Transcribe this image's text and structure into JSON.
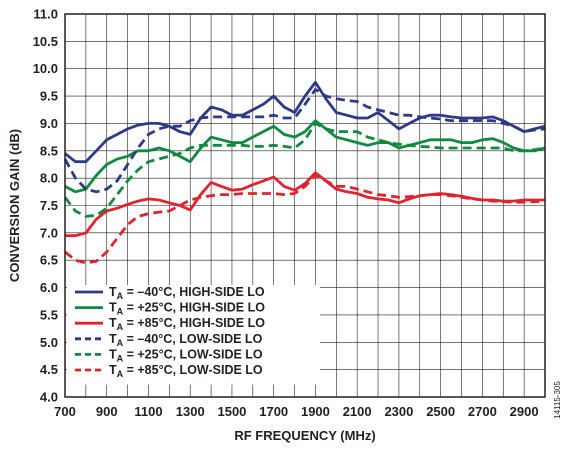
{
  "chart_data": {
    "type": "line",
    "xlabel": "RF FREQUENCY (MHz)",
    "ylabel": "CONVERSION GAIN (dB)",
    "xlim": [
      700,
      3000
    ],
    "ylim": [
      4.0,
      11.0
    ],
    "x_ticks": [
      "700",
      "900",
      "1100",
      "1300",
      "1500",
      "1700",
      "1900",
      "2100",
      "2300",
      "2500",
      "2700",
      "2900"
    ],
    "y_ticks": [
      "4.0",
      "4.5",
      "5.0",
      "5.5",
      "6.0",
      "6.5",
      "7.0",
      "7.5",
      "8.0",
      "8.5",
      "9.0",
      "9.5",
      "10.0",
      "10.5",
      "11.0"
    ],
    "x_tick_values": [
      700,
      900,
      1100,
      1300,
      1500,
      1700,
      1900,
      2100,
      2300,
      2500,
      2700,
      2900
    ],
    "y_tick_values": [
      4.0,
      4.5,
      5.0,
      5.5,
      6.0,
      6.5,
      7.0,
      7.5,
      8.0,
      8.5,
      9.0,
      9.5,
      10.0,
      10.5,
      11.0
    ],
    "grid": true,
    "legend_placement": "bottom-left",
    "figure_id": "14115-305",
    "colors": {
      "blue": "#2e3a87",
      "green": "#0f8a3f",
      "red": "#e1232f"
    },
    "series": [
      {
        "name": "= –40°C, HIGH-SIDE LO",
        "color": "blue",
        "style": "solid",
        "x": [
          700,
          750,
          800,
          850,
          900,
          950,
          1000,
          1050,
          1100,
          1150,
          1200,
          1250,
          1300,
          1350,
          1400,
          1450,
          1500,
          1550,
          1600,
          1650,
          1700,
          1750,
          1800,
          1850,
          1900,
          1950,
          2000,
          2050,
          2100,
          2150,
          2200,
          2250,
          2300,
          2350,
          2400,
          2450,
          2500,
          2550,
          2600,
          2650,
          2700,
          2750,
          2800,
          2850,
          2900,
          2950,
          3000
        ],
        "y": [
          8.45,
          8.3,
          8.3,
          8.5,
          8.7,
          8.8,
          8.9,
          8.97,
          9.0,
          9.0,
          8.95,
          8.85,
          8.8,
          9.1,
          9.3,
          9.25,
          9.15,
          9.15,
          9.25,
          9.35,
          9.5,
          9.3,
          9.2,
          9.5,
          9.75,
          9.45,
          9.2,
          9.15,
          9.1,
          9.1,
          9.2,
          9.05,
          8.9,
          9.0,
          9.1,
          9.15,
          9.15,
          9.12,
          9.1,
          9.1,
          9.1,
          9.12,
          9.05,
          8.95,
          8.85,
          8.9,
          8.95
        ]
      },
      {
        "name": "= +25°C, HIGH-SIDE LO",
        "color": "green",
        "style": "solid",
        "x": [
          700,
          750,
          800,
          850,
          900,
          950,
          1000,
          1050,
          1100,
          1150,
          1200,
          1250,
          1300,
          1350,
          1400,
          1450,
          1500,
          1550,
          1600,
          1650,
          1700,
          1750,
          1800,
          1850,
          1900,
          1950,
          2000,
          2050,
          2100,
          2150,
          2200,
          2250,
          2300,
          2350,
          2400,
          2450,
          2500,
          2550,
          2600,
          2650,
          2700,
          2750,
          2800,
          2850,
          2900,
          2950,
          3000
        ],
        "y": [
          7.85,
          7.75,
          7.8,
          8.05,
          8.25,
          8.35,
          8.4,
          8.5,
          8.5,
          8.55,
          8.5,
          8.4,
          8.3,
          8.55,
          8.75,
          8.7,
          8.65,
          8.65,
          8.75,
          8.85,
          8.95,
          8.8,
          8.75,
          8.85,
          9.05,
          8.9,
          8.75,
          8.7,
          8.65,
          8.6,
          8.65,
          8.65,
          8.55,
          8.6,
          8.65,
          8.7,
          8.7,
          8.7,
          8.65,
          8.65,
          8.7,
          8.72,
          8.65,
          8.55,
          8.5,
          8.5,
          8.55
        ]
      },
      {
        "name": "= +85°C, HIGH-SIDE LO",
        "color": "red",
        "style": "solid",
        "x": [
          700,
          750,
          800,
          850,
          900,
          950,
          1000,
          1050,
          1100,
          1150,
          1200,
          1250,
          1300,
          1350,
          1400,
          1450,
          1500,
          1550,
          1600,
          1650,
          1700,
          1750,
          1800,
          1850,
          1900,
          1950,
          2000,
          2050,
          2100,
          2150,
          2200,
          2250,
          2300,
          2350,
          2400,
          2450,
          2500,
          2550,
          2600,
          2650,
          2700,
          2750,
          2800,
          2850,
          2900,
          2950,
          3000
        ],
        "y": [
          6.95,
          6.95,
          7.0,
          7.25,
          7.4,
          7.45,
          7.52,
          7.58,
          7.62,
          7.6,
          7.55,
          7.5,
          7.42,
          7.7,
          7.92,
          7.85,
          7.78,
          7.8,
          7.88,
          7.95,
          8.02,
          7.85,
          7.78,
          7.9,
          8.1,
          7.95,
          7.8,
          7.75,
          7.72,
          7.65,
          7.62,
          7.6,
          7.55,
          7.62,
          7.68,
          7.7,
          7.72,
          7.7,
          7.67,
          7.63,
          7.6,
          7.6,
          7.58,
          7.58,
          7.6,
          7.6,
          7.6
        ]
      },
      {
        "name": "= –40°C, LOW-SIDE LO",
        "color": "blue",
        "style": "dashed",
        "x": [
          700,
          750,
          800,
          850,
          900,
          950,
          1000,
          1050,
          1100,
          1150,
          1200,
          1250,
          1300,
          1350,
          1400,
          1450,
          1500,
          1550,
          1600,
          1650,
          1700,
          1750,
          1800,
          1850,
          1900,
          1950,
          2000,
          2050,
          2100,
          2150,
          2200,
          2250,
          2300,
          2350,
          2400,
          2450,
          2500,
          2550,
          2600,
          2650,
          2700,
          2750,
          2800,
          2850,
          2900,
          2950,
          3000
        ],
        "y": [
          8.35,
          8.0,
          7.8,
          7.75,
          7.8,
          7.95,
          8.25,
          8.55,
          8.8,
          8.9,
          8.95,
          8.95,
          9.05,
          9.1,
          9.12,
          9.12,
          9.12,
          9.12,
          9.12,
          9.12,
          9.15,
          9.1,
          9.1,
          9.35,
          9.62,
          9.5,
          9.45,
          9.42,
          9.4,
          9.3,
          9.25,
          9.2,
          9.15,
          9.15,
          9.12,
          9.1,
          9.08,
          9.05,
          9.05,
          9.05,
          9.05,
          9.05,
          9.0,
          8.95,
          8.85,
          8.88,
          8.9
        ]
      },
      {
        "name": "= +25°C, LOW-SIDE LO",
        "color": "green",
        "style": "dashed",
        "x": [
          700,
          750,
          800,
          850,
          900,
          950,
          1000,
          1050,
          1100,
          1150,
          1200,
          1250,
          1300,
          1350,
          1400,
          1450,
          1500,
          1550,
          1600,
          1650,
          1700,
          1750,
          1800,
          1850,
          1900,
          1950,
          2000,
          2050,
          2100,
          2150,
          2200,
          2250,
          2300,
          2350,
          2400,
          2450,
          2500,
          2550,
          2600,
          2650,
          2700,
          2750,
          2800,
          2850,
          2900,
          2950,
          3000
        ],
        "y": [
          7.65,
          7.4,
          7.3,
          7.32,
          7.45,
          7.7,
          7.95,
          8.15,
          8.3,
          8.35,
          8.4,
          8.45,
          8.55,
          8.6,
          8.6,
          8.6,
          8.6,
          8.6,
          8.58,
          8.58,
          8.6,
          8.58,
          8.55,
          8.7,
          9.0,
          8.9,
          8.85,
          8.85,
          8.85,
          8.75,
          8.7,
          8.65,
          8.62,
          8.6,
          8.58,
          8.57,
          8.55,
          8.55,
          8.55,
          8.55,
          8.55,
          8.55,
          8.55,
          8.5,
          8.5,
          8.52,
          8.55
        ]
      },
      {
        "name": "= +85°C, LOW-SIDE LO",
        "color": "red",
        "style": "dashed",
        "x": [
          700,
          750,
          800,
          850,
          900,
          950,
          1000,
          1050,
          1100,
          1150,
          1200,
          1250,
          1300,
          1350,
          1400,
          1450,
          1500,
          1550,
          1600,
          1650,
          1700,
          1750,
          1800,
          1850,
          1900,
          1950,
          2000,
          2050,
          2100,
          2150,
          2200,
          2250,
          2300,
          2350,
          2400,
          2450,
          2500,
          2550,
          2600,
          2650,
          2700,
          2750,
          2800,
          2850,
          2900,
          2950,
          3000
        ],
        "y": [
          6.65,
          6.5,
          6.45,
          6.48,
          6.65,
          6.9,
          7.15,
          7.3,
          7.35,
          7.38,
          7.4,
          7.5,
          7.6,
          7.65,
          7.68,
          7.7,
          7.7,
          7.72,
          7.72,
          7.72,
          7.72,
          7.7,
          7.72,
          7.85,
          8.05,
          7.95,
          7.85,
          7.85,
          7.8,
          7.75,
          7.7,
          7.68,
          7.65,
          7.66,
          7.68,
          7.7,
          7.7,
          7.68,
          7.65,
          7.62,
          7.6,
          7.58,
          7.57,
          7.56,
          7.56,
          7.57,
          7.58
        ]
      }
    ]
  }
}
